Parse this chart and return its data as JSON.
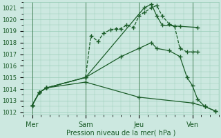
{
  "xlabel": "Pression niveau de la mer( hPa )",
  "bg_color": "#cce8e0",
  "grid_color": "#99cdb8",
  "line_color": "#1a5c28",
  "ylim": [
    1011.8,
    1021.5
  ],
  "xlim": [
    -0.5,
    10.5
  ],
  "day_labels": [
    "Mer",
    "Sam",
    "Jeu",
    "Ven"
  ],
  "day_positions": [
    0,
    3,
    6,
    9
  ],
  "yticks": [
    1012,
    1013,
    1014,
    1015,
    1016,
    1017,
    1018,
    1019,
    1020,
    1021
  ],
  "series": [
    {
      "x": [
        0,
        0.4,
        0.8,
        3.0,
        3.3,
        3.7,
        4.0,
        4.4,
        4.7,
        5.0,
        5.3,
        5.7,
        6.0,
        6.3,
        6.7,
        7.0,
        7.3,
        7.7,
        8.0,
        8.3,
        8.7,
        9.0,
        9.3
      ],
      "y": [
        1012.6,
        1013.7,
        1014.1,
        1015.0,
        1018.6,
        1018.1,
        1018.8,
        1019.1,
        1019.2,
        1019.2,
        1019.5,
        1019.3,
        1020.3,
        1020.6,
        1021.0,
        1021.2,
        1020.3,
        1019.6,
        1019.4,
        1017.5,
        1017.2,
        1017.2,
        1017.2
      ],
      "marker": "+",
      "markersize": 4,
      "linestyle": "--",
      "lw": 0.9
    },
    {
      "x": [
        0,
        0.4,
        0.8,
        3.0,
        6.3,
        6.7,
        7.0,
        7.3,
        8.3,
        9.3
      ],
      "y": [
        1012.6,
        1013.7,
        1014.1,
        1015.0,
        1021.0,
        1021.3,
        1020.3,
        1019.5,
        1019.4,
        1019.3
      ],
      "marker": "+",
      "markersize": 4,
      "linestyle": "-",
      "lw": 0.9
    },
    {
      "x": [
        0,
        0.4,
        0.8,
        3.0,
        5.0,
        6.0,
        6.7,
        7.0,
        7.7,
        8.3,
        8.7,
        9.0,
        9.3,
        9.7,
        10.3
      ],
      "y": [
        1012.6,
        1013.7,
        1014.1,
        1015.0,
        1016.8,
        1017.5,
        1018.0,
        1017.5,
        1017.3,
        1016.8,
        1015.0,
        1014.3,
        1013.1,
        1012.5,
        1012.1
      ],
      "marker": "+",
      "markersize": 4,
      "linestyle": "-",
      "lw": 0.9
    },
    {
      "x": [
        0,
        0.4,
        0.8,
        3.0,
        6.0,
        9.0,
        9.7,
        10.3
      ],
      "y": [
        1012.6,
        1013.7,
        1014.1,
        1014.6,
        1013.3,
        1012.8,
        1012.5,
        1012.1
      ],
      "marker": "+",
      "markersize": 4,
      "linestyle": "-",
      "lw": 0.9
    }
  ]
}
